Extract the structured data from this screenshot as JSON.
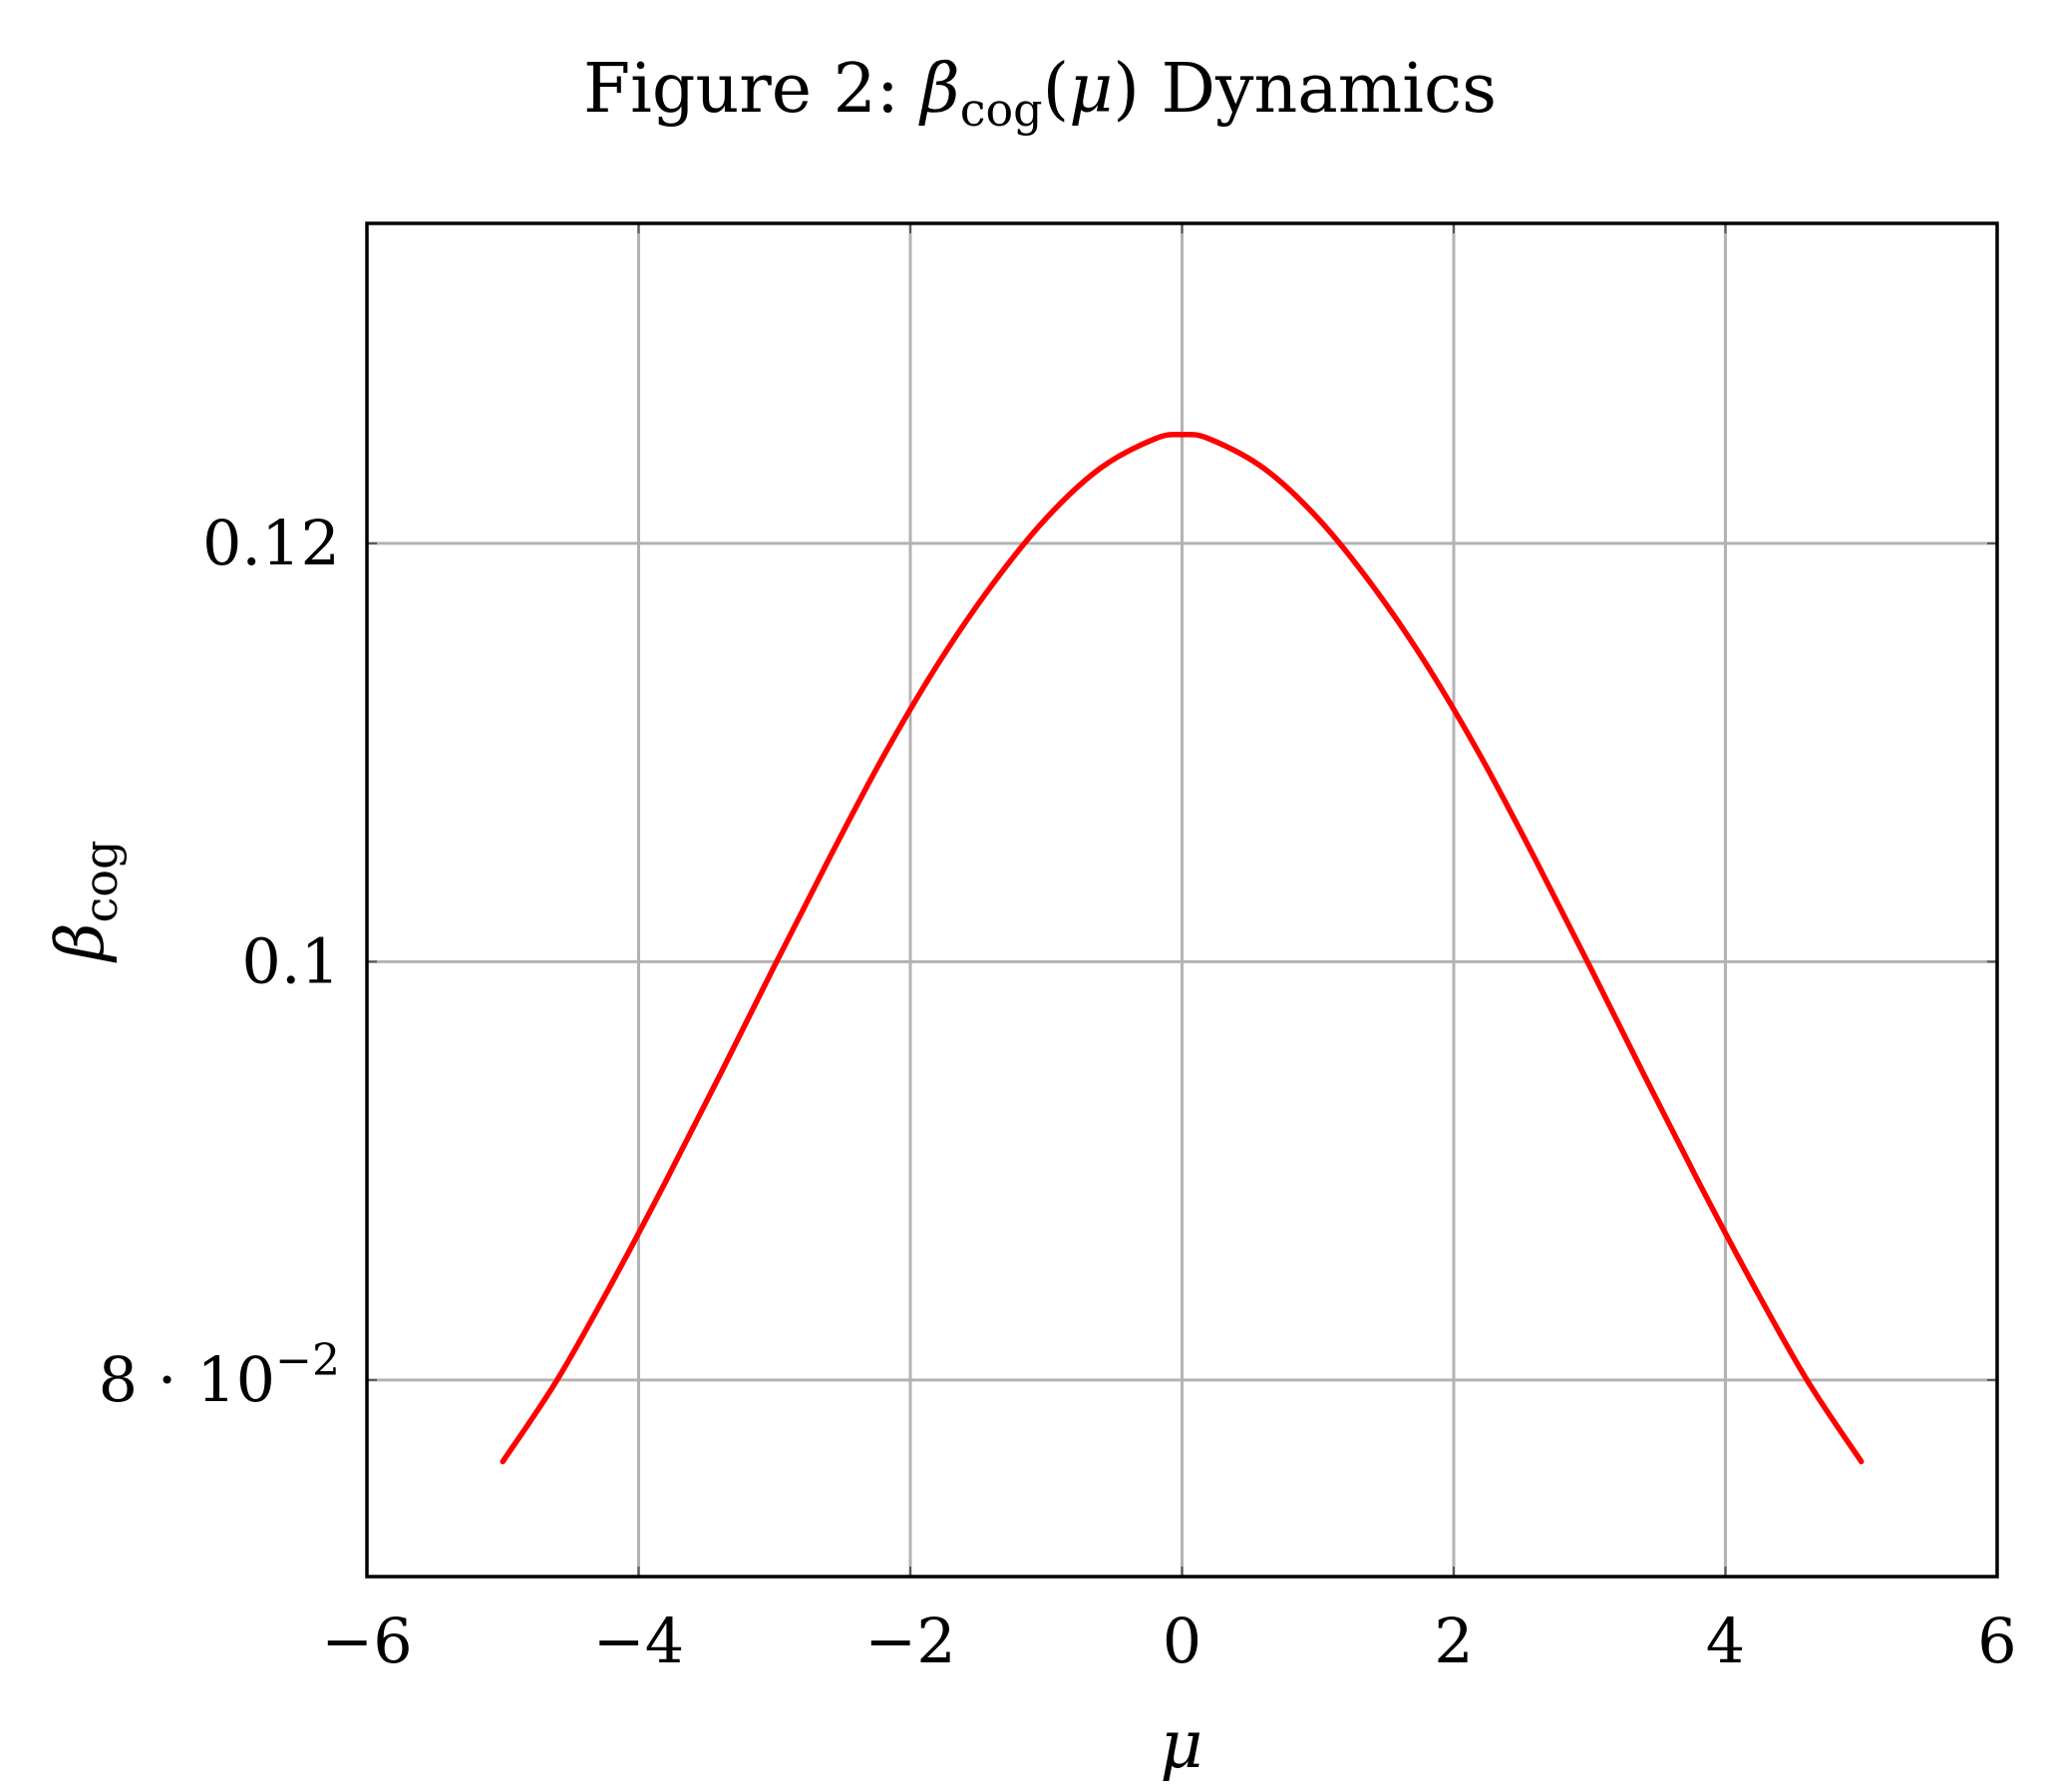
{
  "chart_data": {
    "type": "line",
    "title": {
      "prefix": "Figure 2: ",
      "symbol": "β",
      "subscript": "cog",
      "open": "(",
      "argument": "μ",
      "close": ")",
      "suffix": " Dynamics"
    },
    "xlabel": "μ",
    "ylabel": {
      "symbol": "β",
      "subscript": "cog"
    },
    "xlim": [
      -6,
      6
    ],
    "ylim": [
      0.0706,
      0.1353
    ],
    "x_ticks": [
      -6,
      -4,
      -2,
      0,
      2,
      4,
      6
    ],
    "x_tick_labels": [
      "−6",
      "−4",
      "−2",
      "0",
      "2",
      "4",
      "6"
    ],
    "y_ticks": [
      {
        "value": 0.08,
        "label": "8 · 10",
        "exponent": "−2"
      },
      {
        "value": 0.1,
        "label": "0.1",
        "exponent": ""
      },
      {
        "value": 0.12,
        "label": "0.12",
        "exponent": ""
      }
    ],
    "grid": true,
    "series": [
      {
        "color": "#ff0000",
        "x": [
          -5,
          -4.6,
          -4.2,
          -3.8,
          -3.4,
          -3,
          -2.6,
          -2.2,
          -1.8,
          -1.4,
          -1,
          -0.6,
          -0.2,
          0,
          0.2,
          0.6,
          1,
          1.4,
          1.8,
          2.2,
          2.6,
          3,
          3.4,
          3.8,
          4.2,
          4.6,
          5
        ],
        "y": [
          0.0761,
          0.08,
          0.0846,
          0.0895,
          0.0946,
          0.0998,
          0.1049,
          0.1098,
          0.1142,
          0.118,
          0.1212,
          0.1236,
          0.125,
          0.1252,
          0.125,
          0.1236,
          0.1212,
          0.118,
          0.1142,
          0.1098,
          0.1049,
          0.0998,
          0.0946,
          0.0895,
          0.0846,
          0.08,
          0.0761
        ]
      }
    ]
  }
}
